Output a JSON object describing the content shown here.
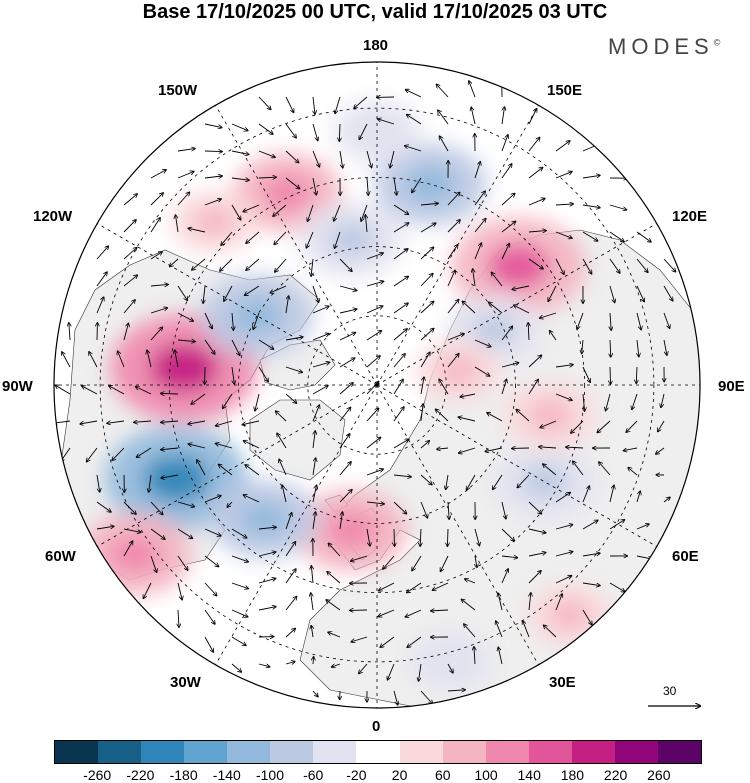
{
  "title": "Base 17/10/2025 00 UTC, valid 17/10/2025 03 UTC",
  "brand": {
    "name": "MODES",
    "mark": "©"
  },
  "longitude_labels": {
    "n180": "180",
    "s0": "0",
    "w90": "90W",
    "e90": "90E",
    "w150": "150W",
    "e150": "150E",
    "w120": "120W",
    "e120": "120E",
    "w60": "60W",
    "e60": "60E",
    "w30": "30W",
    "e30": "30E"
  },
  "vector_scale": {
    "value": "30"
  },
  "colorbar": {
    "colors": [
      "#0a3550",
      "#175f86",
      "#2f86b8",
      "#5fa3ce",
      "#92b9dc",
      "#bcc9e3",
      "#e2e2f0",
      "#ffffff",
      "#f9d9da",
      "#f4b4c0",
      "#ef88ac",
      "#e2559a",
      "#c41f82",
      "#90067a",
      "#5c0368"
    ],
    "ticks": [
      "-260",
      "-220",
      "-180",
      "-140",
      "-100",
      "-60",
      "-20",
      "20",
      "60",
      "100",
      "140",
      "180",
      "220",
      "260"
    ]
  },
  "colors": {
    "land": "#efefef",
    "grid": "#000000",
    "coast": "#333333"
  },
  "anomalies": [
    {
      "lon": 265,
      "lat": 48,
      "value": 200
    },
    {
      "lon": 295,
      "lat": 42,
      "value": -190
    },
    {
      "lon": 240,
      "lat": 60,
      "value": -120
    },
    {
      "lon": 305,
      "lat": 26,
      "value": 120
    },
    {
      "lon": 205,
      "lat": 44,
      "value": 110
    },
    {
      "lon": 130,
      "lat": 50,
      "value": 170
    },
    {
      "lon": 165,
      "lat": 45,
      "value": -120
    },
    {
      "lon": 350,
      "lat": 58,
      "value": 120
    },
    {
      "lon": 320,
      "lat": 52,
      "value": -110
    },
    {
      "lon": 60,
      "lat": 48,
      "value": -100
    },
    {
      "lon": 80,
      "lat": 52,
      "value": 80
    },
    {
      "lon": 115,
      "lat": 62,
      "value": -80
    },
    {
      "lon": 15,
      "lat": 28,
      "value": -50
    },
    {
      "lon": 190,
      "lat": 58,
      "value": -100
    },
    {
      "lon": 180,
      "lat": 35,
      "value": -60
    },
    {
      "lon": 225,
      "lat": 40,
      "value": 60
    },
    {
      "lon": 100,
      "lat": 72,
      "value": 60
    },
    {
      "lon": 40,
      "lat": 25,
      "value": 60
    }
  ]
}
